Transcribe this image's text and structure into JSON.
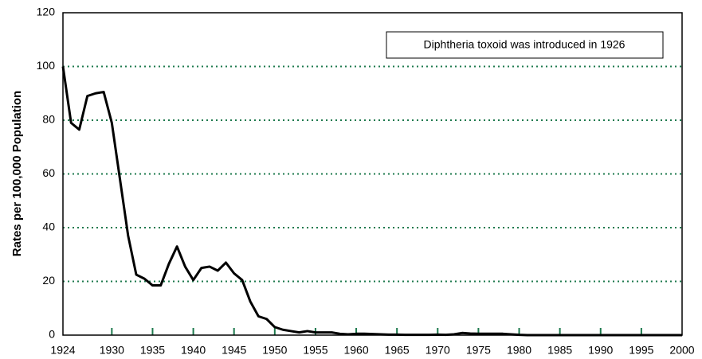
{
  "chart_data": {
    "type": "line",
    "ylabel": "Rates per 100,000 Population",
    "annotation": "Diphtheria toxoid was introduced in 1926",
    "x": [
      1924,
      1925,
      1926,
      1927,
      1928,
      1929,
      1930,
      1931,
      1932,
      1933,
      1934,
      1935,
      1936,
      1937,
      1938,
      1939,
      1940,
      1941,
      1942,
      1943,
      1944,
      1945,
      1946,
      1947,
      1948,
      1949,
      1950,
      1951,
      1952,
      1953,
      1954,
      1955,
      1956,
      1957,
      1958,
      1959,
      1960,
      1961,
      1962,
      1963,
      1964,
      1965,
      1966,
      1967,
      1968,
      1969,
      1970,
      1971,
      1972,
      1973,
      1974,
      1975,
      1976,
      1977,
      1978,
      1979,
      1980,
      1981,
      1982,
      1983,
      1984,
      1985,
      1986,
      1987,
      1988,
      1989,
      1990,
      1991,
      1992,
      1993,
      1994,
      1995,
      1996,
      1997,
      1998,
      1999,
      2000
    ],
    "values": [
      100,
      79,
      76.5,
      89,
      90,
      90.5,
      79,
      58,
      37,
      22.5,
      21,
      18.5,
      18.5,
      26.5,
      33,
      25.5,
      20.5,
      25,
      25.5,
      24,
      27,
      23,
      20.5,
      12.5,
      7,
      6,
      3,
      2,
      1.5,
      1,
      1.5,
      1,
      1,
      1,
      0.5,
      0.3,
      0.5,
      0.5,
      0.4,
      0.3,
      0.2,
      0.2,
      0.1,
      0.1,
      0.1,
      0.1,
      0.2,
      0.1,
      0.3,
      0.8,
      0.6,
      0.5,
      0.5,
      0.5,
      0.5,
      0.3,
      0.1,
      0,
      0,
      0,
      0,
      0,
      0,
      0,
      0,
      0,
      0,
      0,
      0,
      0,
      0,
      0,
      0,
      0,
      0,
      0,
      0
    ],
    "color": "#000000",
    "grid_color": "#1e7a4e",
    "grid": true,
    "xlim": [
      1924,
      2000
    ],
    "xticks": [
      1924,
      1930,
      1935,
      1940,
      1945,
      1950,
      1955,
      1960,
      1965,
      1970,
      1975,
      1980,
      1985,
      1990,
      1995,
      2000
    ],
    "ylim": [
      0,
      120
    ],
    "yticks": [
      0,
      20,
      40,
      60,
      80,
      100,
      120
    ]
  }
}
